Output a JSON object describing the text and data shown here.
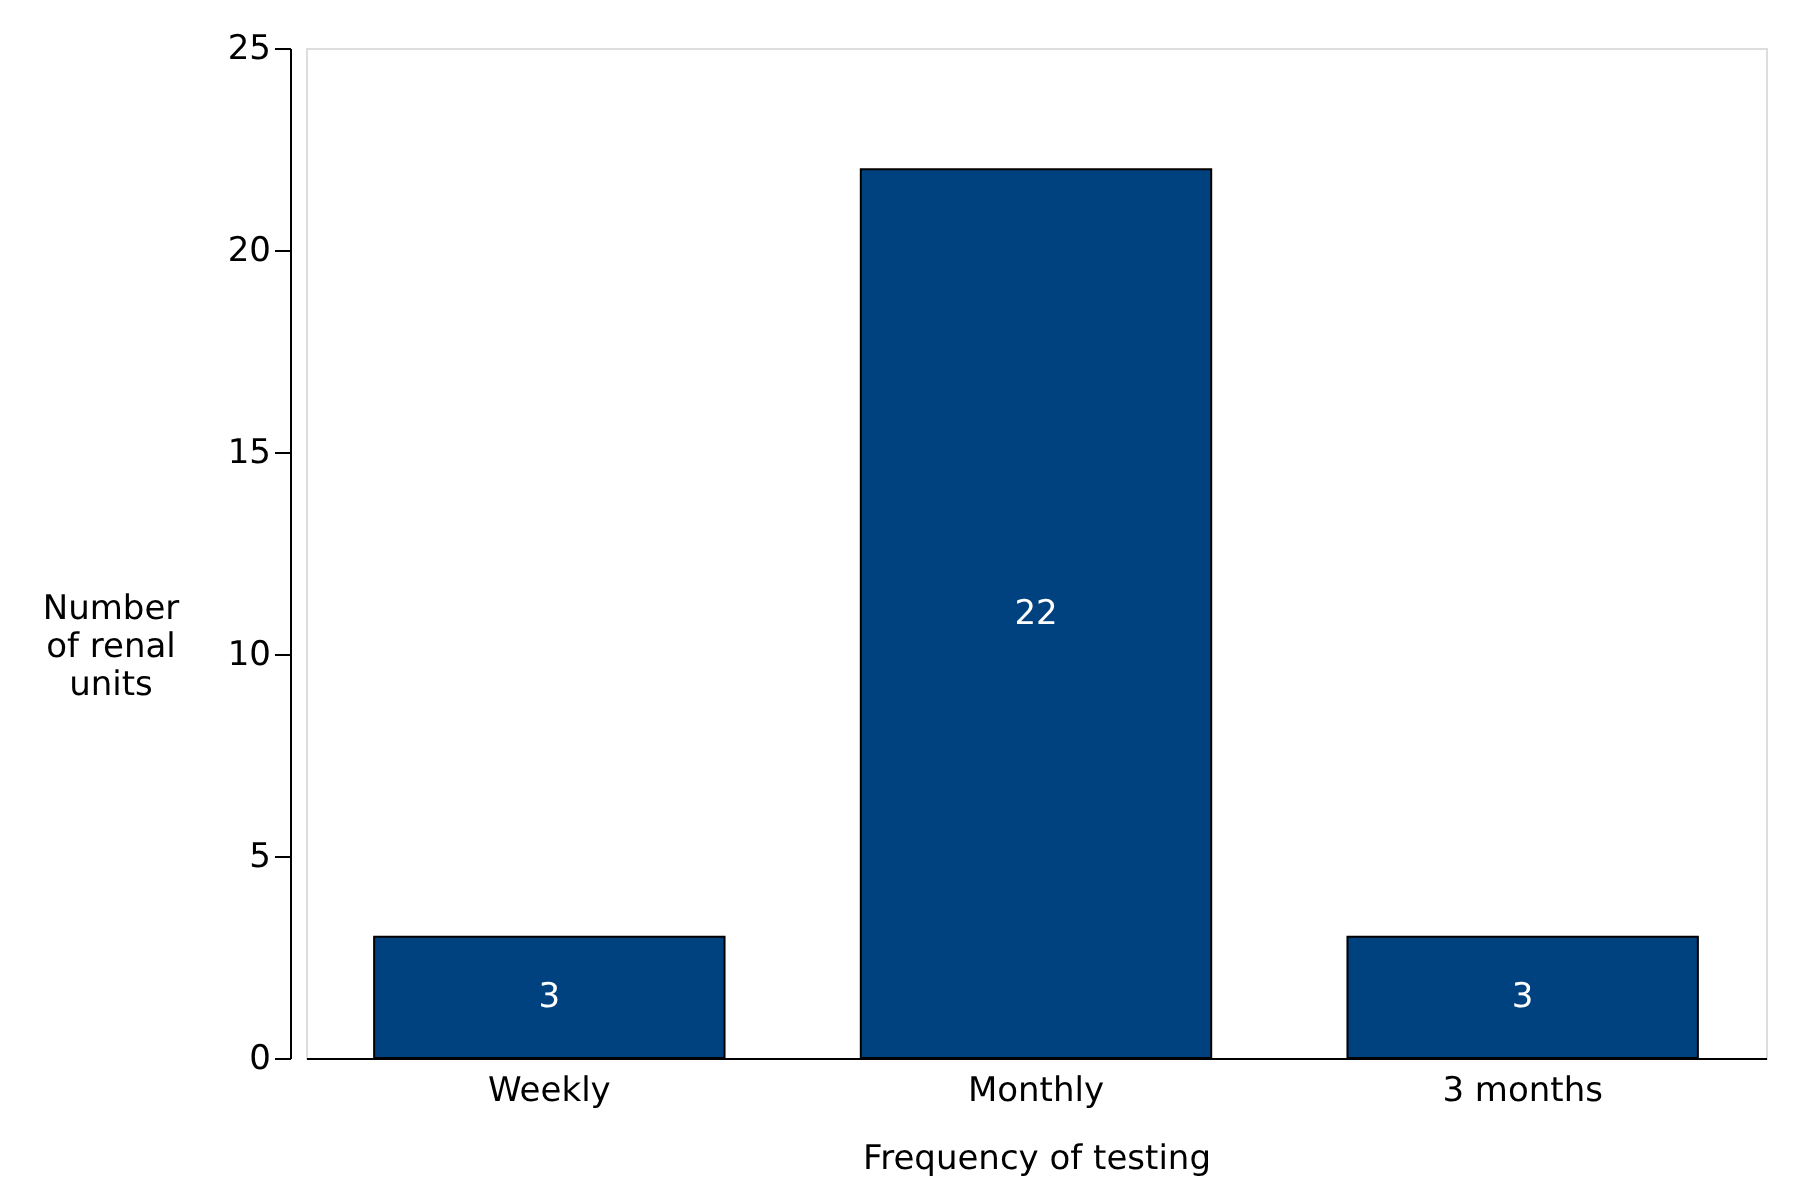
{
  "chart_data": {
    "type": "bar",
    "xlabel": "Frequency of testing",
    "ylabel": "Number of renal units",
    "categories": [
      "Weekly",
      "Monthly",
      "3 months"
    ],
    "values": [
      3,
      22,
      3
    ],
    "color": "#00427f",
    "ylim": [
      0,
      25
    ],
    "yticks": [
      0,
      5,
      10,
      15,
      20,
      25
    ],
    "grid": false,
    "data_labels": true
  }
}
